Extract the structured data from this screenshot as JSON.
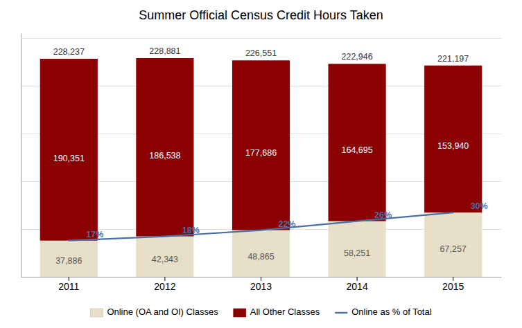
{
  "chart_data": {
    "type": "bar",
    "title": "Summer Official Census Credit Hours Taken",
    "categories": [
      "2011",
      "2012",
      "2013",
      "2014",
      "2015"
    ],
    "stacked": true,
    "data_labels": true,
    "grid": true,
    "legend": "bottom",
    "tick_labels": "x",
    "ylim": [
      0,
      255000
    ],
    "yticks": [
      0,
      50000,
      100000,
      150000,
      200000,
      250000
    ],
    "series": [
      {
        "name": "Online (OA and OI) Classes",
        "type": "bar",
        "color": "#E8DFC8",
        "values": [
          37886,
          42343,
          48865,
          58251,
          67257
        ],
        "value_labels": [
          "37,886",
          "42,343",
          "48,865",
          "58,251",
          "67,257"
        ]
      },
      {
        "name": "All Other Classes",
        "type": "bar",
        "color": "#8B0000",
        "values": [
          190351,
          186538,
          177686,
          164695,
          153940
        ],
        "value_labels": [
          "190,351",
          "186,538",
          "177,686",
          "164,695",
          "153,940"
        ]
      },
      {
        "name": "Online as % of Total",
        "type": "line",
        "color": "#4A6FA5",
        "values": [
          37886,
          42343,
          48865,
          58251,
          67257
        ]
      }
    ],
    "total_values": [
      228237,
      228881,
      226551,
      222946,
      221197
    ],
    "total_labels": [
      "228,237",
      "228,881",
      "226,551",
      "222,946",
      "221,197"
    ],
    "annotations": [
      "17%",
      "18%",
      "22%",
      "26%",
      "30%"
    ]
  }
}
